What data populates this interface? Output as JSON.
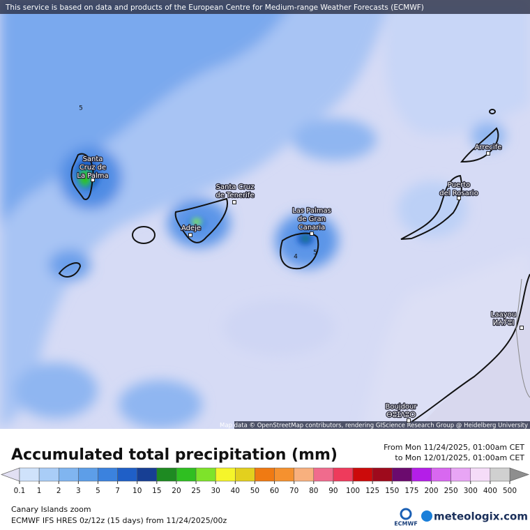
{
  "map": {
    "attribution_top": "This service is based on data and products of the European Centre for Medium-range Weather Forecasts (ECMWF)",
    "attribution_bottom": "Map data © OpenStreetMap contributors, rendering GIScience Research Group @ Heidelberg University",
    "places": [
      {
        "lines": [
          "Santa",
          "Cruz de",
          "La Palma"
        ]
      },
      {
        "lines": [
          "Santa Cruz",
          "de Tenerife"
        ]
      },
      {
        "lines": [
          "Adeje"
        ]
      },
      {
        "lines": [
          "Las Palmas",
          "de Gran",
          "Canaria"
        ]
      },
      {
        "lines": [
          "Puerto",
          "del Rosario"
        ]
      },
      {
        "lines": [
          "Arrecife"
        ]
      },
      {
        "lines": [
          "Laayou",
          "ⵍⵄⵢⵓⵏ"
        ]
      },
      {
        "lines": [
          "Boujdour",
          "ⴱⵓⵊⴷⵓⵔ"
        ]
      }
    ],
    "contour_labels": [
      "5",
      "5",
      "4"
    ]
  },
  "legend": {
    "title": "Accumulated total precipitation (mm)",
    "from": "From Mon 11/24/2025, 01:00am CET",
    "to": "to Mon 12/01/2025, 01:00am CET",
    "ticks": [
      0.1,
      1,
      2,
      3,
      5,
      7,
      10,
      15,
      20,
      25,
      30,
      40,
      50,
      60,
      70,
      80,
      90,
      100,
      125,
      150,
      175,
      200,
      250,
      300,
      400,
      500
    ],
    "colors": [
      "#cfe2fb",
      "#a9cdf7",
      "#80b5f0",
      "#5d9ee8",
      "#3b82de",
      "#1f5fc7",
      "#173f94",
      "#1e8a22",
      "#2fbf21",
      "#7ee32a",
      "#f5f52a",
      "#e3d01e",
      "#f07a12",
      "#f5912f",
      "#f8b07e",
      "#f06b8d",
      "#ee3b5c",
      "#cc0a0a",
      "#9e0a1c",
      "#6b0a6e",
      "#b41ee8",
      "#d868f0",
      "#e8a5f5",
      "#f5dcf8",
      "#d0d0d0"
    ],
    "low_color": "#e2e0f3",
    "high_color": "#8e8e8e"
  },
  "footer": {
    "region": "Canary Islands zoom",
    "model": "ECMWF IFS HRES 0z/12z (15 days) from 11/24/2025/00z",
    "logo_ecmwf": "ECMWF",
    "logo_meteologix": "meteologix.com"
  }
}
